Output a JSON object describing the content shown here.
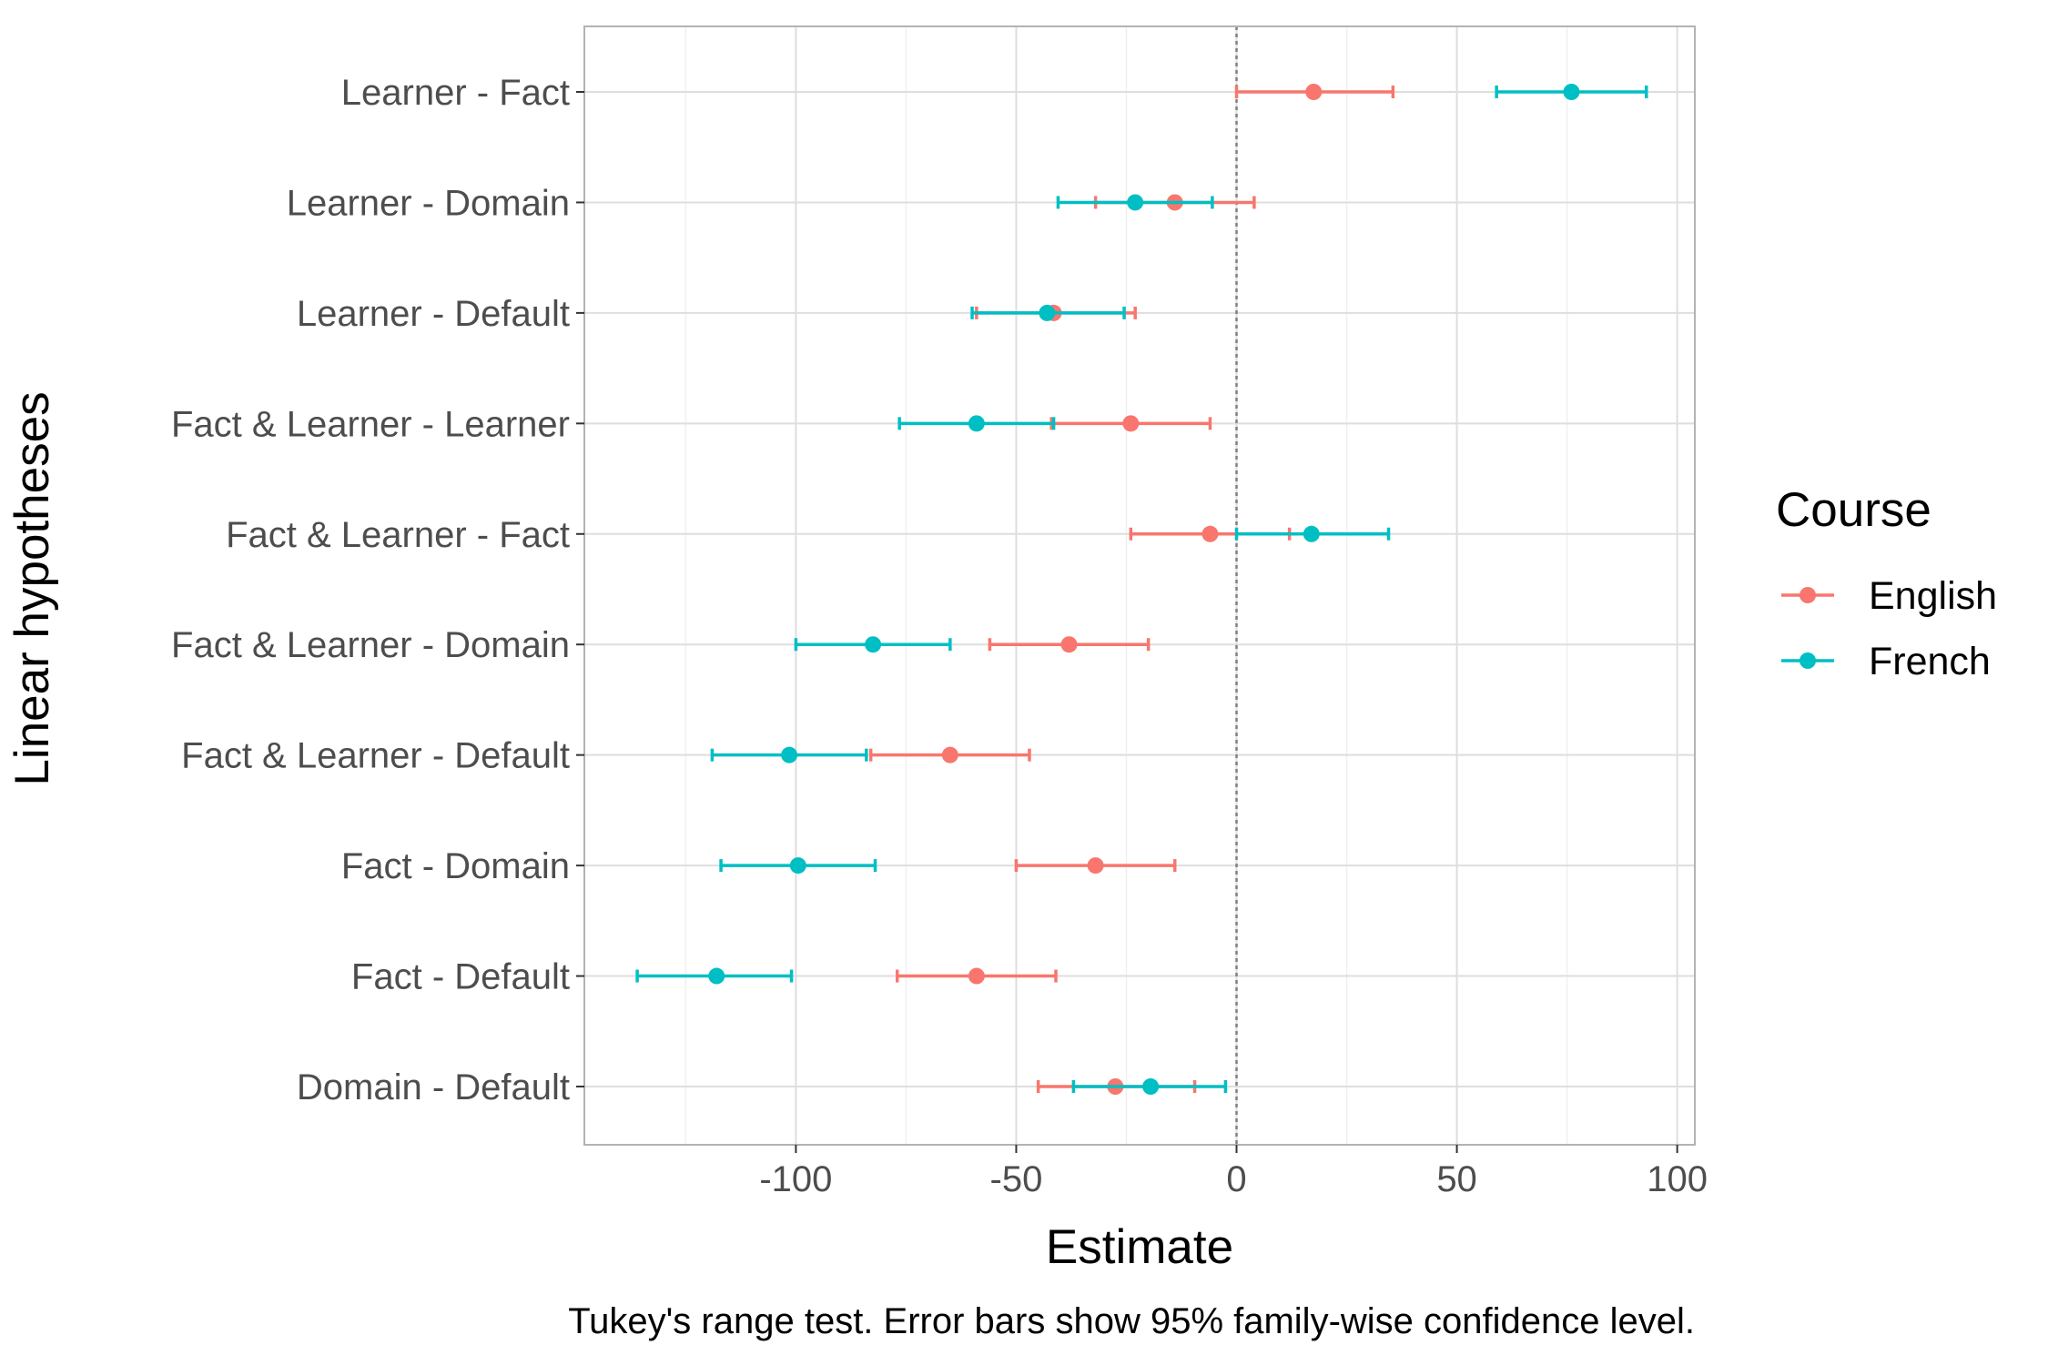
{
  "chart_data": {
    "type": "scatter",
    "subtype": "point-with-horizontal-error-bars",
    "xlabel": "Estimate",
    "ylabel": "Linear hypotheses",
    "caption": "Tukey's range test. Error bars show 95% family-wise confidence level.",
    "xlim": [
      -148,
      104
    ],
    "x_ticks": [
      -100,
      -50,
      0,
      50,
      100
    ],
    "x_tick_labels": [
      "-100",
      "-50",
      "0",
      "50",
      "100"
    ],
    "reference_line_x": 0,
    "grid": true,
    "legend": {
      "title": "Course",
      "position": "right"
    },
    "categories": [
      "Learner - Fact",
      "Learner - Domain",
      "Learner - Default",
      "Fact & Learner - Learner",
      "Fact & Learner - Fact",
      "Fact & Learner - Domain",
      "Fact & Learner - Default",
      "Fact - Domain",
      "Fact - Default",
      "Domain - Default"
    ],
    "series": [
      {
        "name": "English",
        "color": "#F8766D",
        "estimate": [
          17.5,
          -14,
          -41.5,
          -24,
          -6,
          -38,
          -65,
          -32,
          -59,
          -27.5
        ],
        "lower": [
          0,
          -32,
          -59,
          -42,
          -24,
          -56,
          -83,
          -50,
          -77,
          -45
        ],
        "upper": [
          35.5,
          4,
          -23,
          -6,
          12,
          -20,
          -47,
          -14,
          -41,
          -9.5
        ]
      },
      {
        "name": "French",
        "color": "#00BFC4",
        "estimate": [
          76,
          -23,
          -43,
          -59,
          17,
          -82.5,
          -101.5,
          -99.5,
          -118,
          -19.5
        ],
        "lower": [
          59,
          -40.5,
          -60,
          -76.5,
          0,
          -100,
          -119,
          -117,
          -136,
          -37
        ],
        "upper": [
          93,
          -5.5,
          -25.5,
          -41.5,
          34.5,
          -65,
          -84,
          -82,
          -101,
          -2.5
        ]
      }
    ]
  }
}
